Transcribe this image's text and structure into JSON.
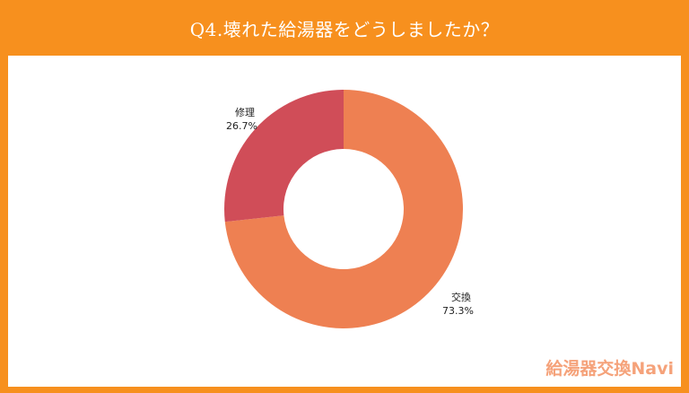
{
  "title": "Q4.壊れた給湯器をどうしましたか？",
  "brand": "給湯器交換Navi",
  "colors": {
    "frame": "#F7901E",
    "slice_exchange": "#EE8052",
    "slice_repair": "#D04D58"
  },
  "chart_data": {
    "type": "pie",
    "donut": true,
    "start_angle_deg": 0,
    "direction": "clockwise",
    "slices": [
      {
        "label": "交換",
        "value": 73.3,
        "value_label": "73.3%",
        "color": "#EE8052"
      },
      {
        "label": "修理",
        "value": 26.7,
        "value_label": "26.7%",
        "color": "#D04D58"
      }
    ]
  }
}
